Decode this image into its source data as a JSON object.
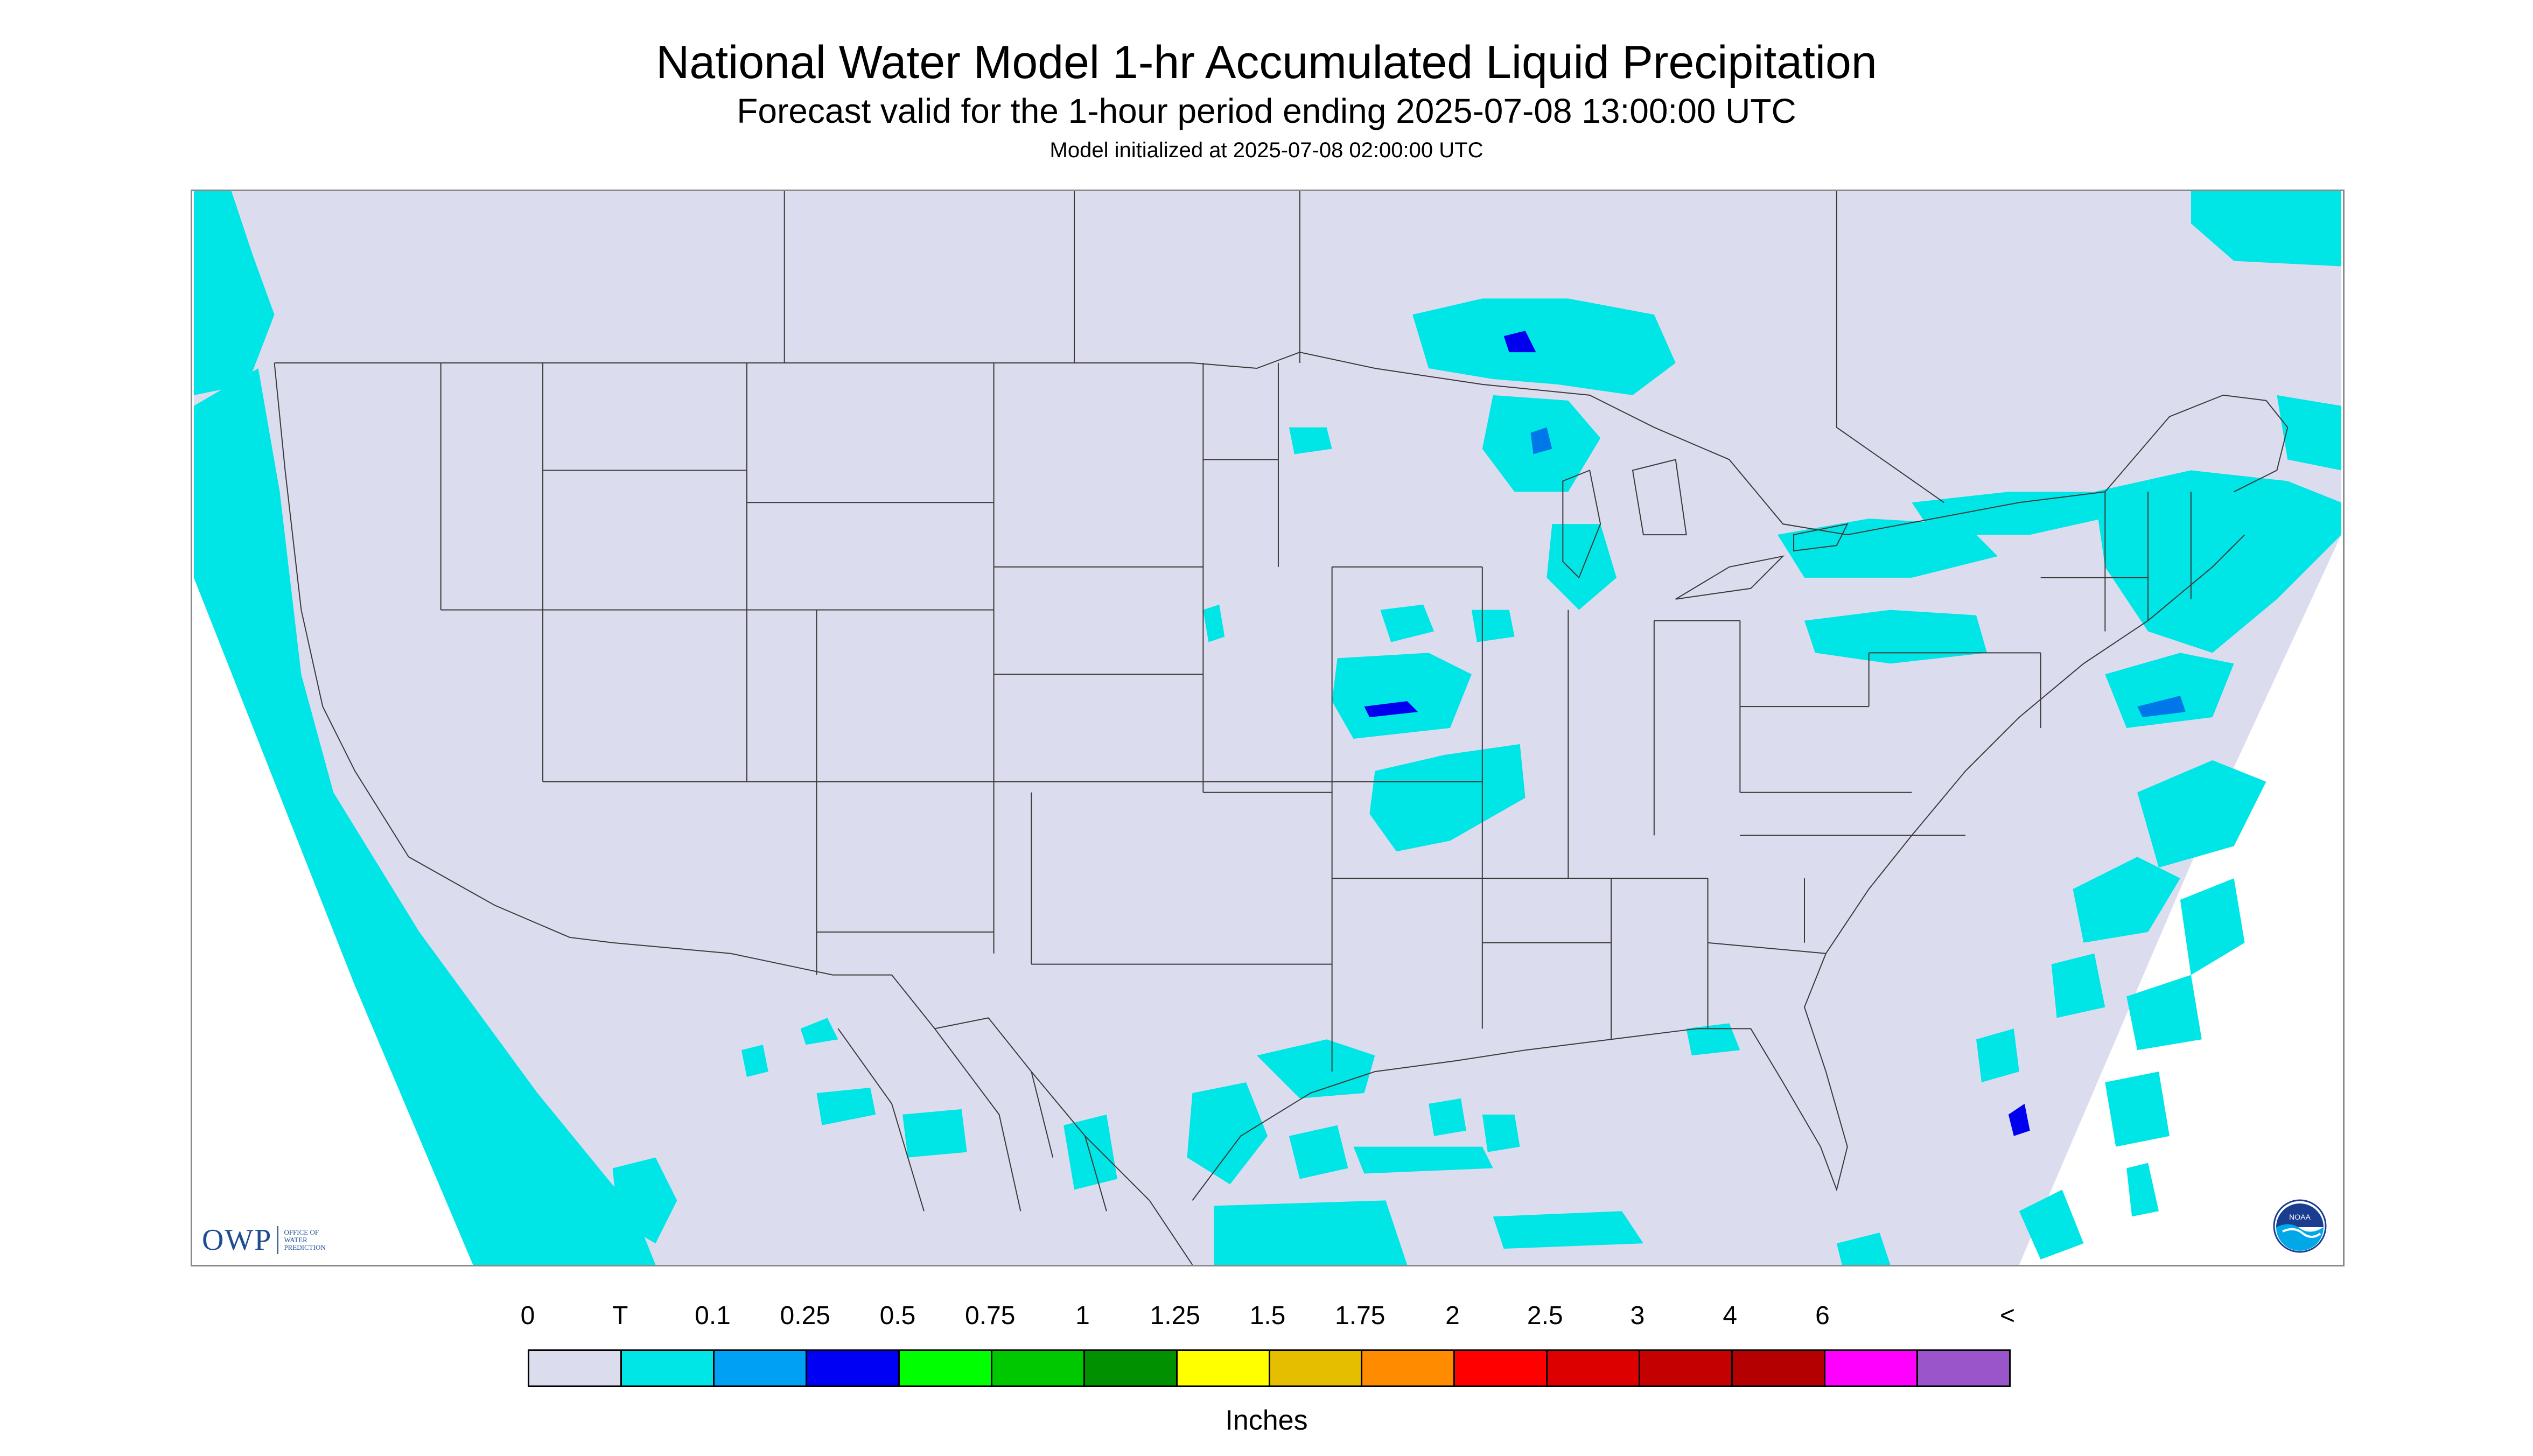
{
  "header": {
    "title": "National Water Model 1-hr Accumulated Liquid Precipitation",
    "subtitle": "Forecast valid for the 1-hour period ending 2025-07-08 13:00:00 UTC",
    "init": "Model initialized at 2025-07-08 02:00:00 UTC"
  },
  "map": {
    "background_color": "#dcdcef",
    "precip_color": "#00e5e5",
    "moderate_color": "#0077e8",
    "heavy_color": "#0000ee",
    "outline_color": "#3a3a3a"
  },
  "logos": {
    "owp_letters": "OWP",
    "owp_sub": [
      "OFFICE OF",
      "WATER",
      "PREDICTION"
    ],
    "noaa_icon": "noaa-logo-icon",
    "noaa_text": "NOAA"
  },
  "legend": {
    "labels": [
      "0",
      "T",
      "0.1",
      "0.25",
      "0.5",
      "0.75",
      "1",
      "1.25",
      "1.5",
      "1.75",
      "2",
      "2.5",
      "3",
      "4",
      "6",
      "<"
    ],
    "colors": [
      "#dcdcef",
      "#00e5e5",
      "#00a0f5",
      "#0000f5",
      "#00ff00",
      "#00c800",
      "#009000",
      "#ffff00",
      "#e6be00",
      "#ff8c00",
      "#ff0000",
      "#dc0000",
      "#c40000",
      "#b40000",
      "#ff00ff",
      "#9955c9"
    ],
    "units": "Inches"
  }
}
